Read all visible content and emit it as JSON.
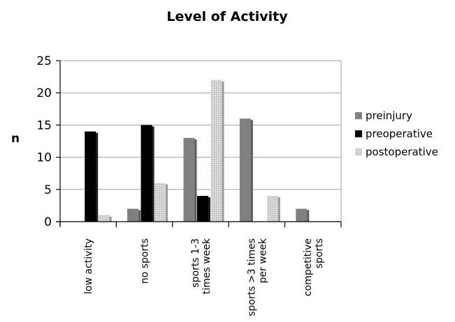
{
  "chart_data": {
    "type": "bar",
    "title": "Level of Activity",
    "xlabel": "",
    "ylabel": "n",
    "ylim": [
      0,
      25
    ],
    "yticks": [
      0,
      5,
      10,
      15,
      20,
      25
    ],
    "grid": true,
    "legend_position": "right",
    "categories": [
      [
        "low activity"
      ],
      [
        "no sports"
      ],
      [
        "sports 1-3",
        "times week"
      ],
      [
        "sports >3 times",
        "per week"
      ],
      [
        "competitive",
        "sports"
      ]
    ],
    "series": [
      {
        "name": "preinjury",
        "color": "#808080",
        "values": [
          0,
          2,
          13,
          16,
          2
        ]
      },
      {
        "name": "preoperative",
        "color": "#000000",
        "values": [
          14,
          15,
          4,
          0,
          0
        ]
      },
      {
        "name": "postoperative",
        "color": "#c8c8c8",
        "values": [
          1,
          6,
          22,
          4,
          0
        ]
      }
    ]
  }
}
